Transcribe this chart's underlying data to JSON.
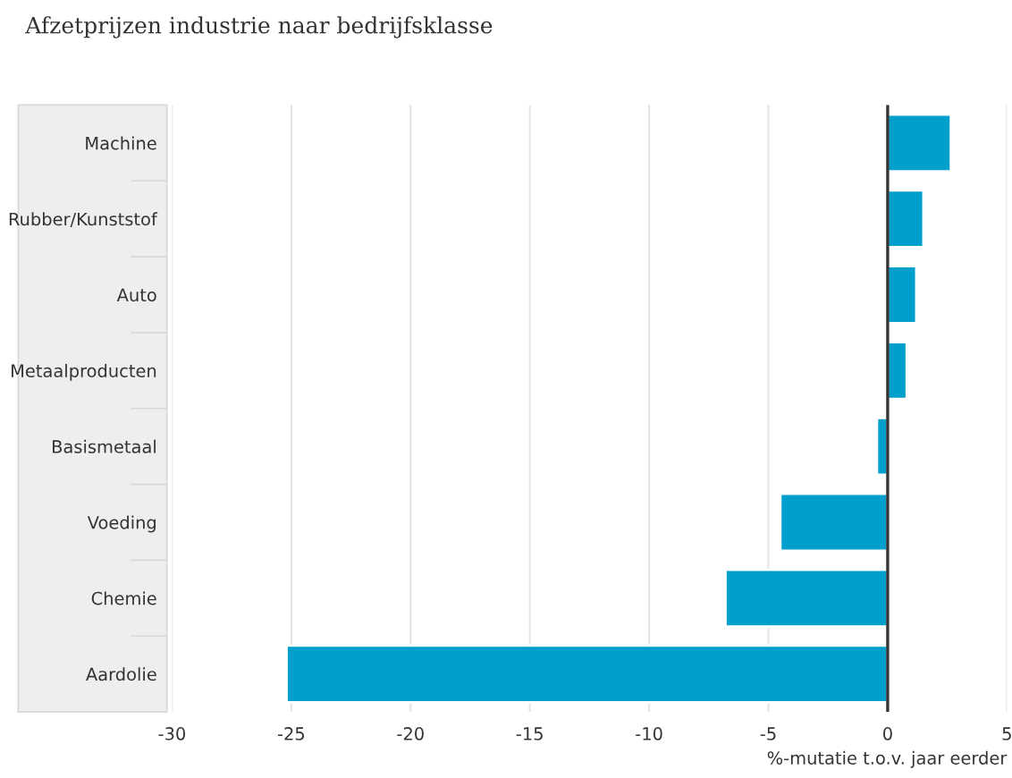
{
  "chart_data": {
    "type": "bar",
    "orientation": "horizontal",
    "title": "Afzetprijzen industrie naar bedrijfsklasse",
    "xlabel": "%-mutatie t.o.v. jaar eerder",
    "categories": [
      "Machine",
      "Rubber/Kunststof",
      "Auto",
      "Metaalproducten",
      "Basismetaal",
      "Voeding",
      "Chemie",
      "Aardolie"
    ],
    "values": [
      2.65,
      1.5,
      1.2,
      0.8,
      -0.45,
      -4.5,
      -6.8,
      -25.2
    ],
    "color": "#009fcc",
    "xlim": [
      -30,
      5
    ],
    "xticks": [
      -30,
      -25,
      -20,
      -15,
      -10,
      -5,
      0,
      5
    ],
    "grid": "x",
    "legend": false
  }
}
